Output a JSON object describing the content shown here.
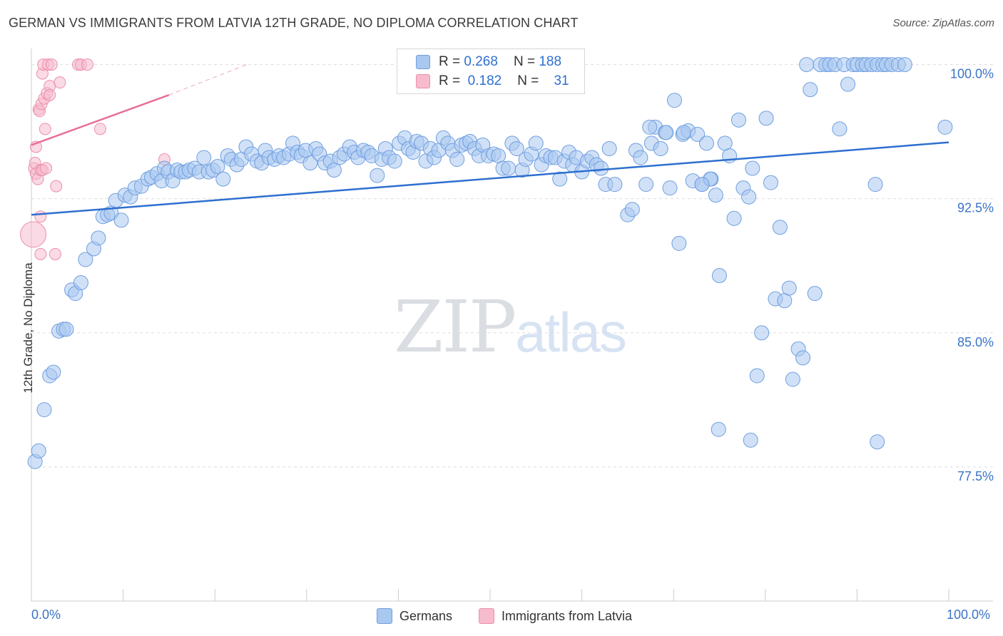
{
  "title": "GERMAN VS IMMIGRANTS FROM LATVIA 12TH GRADE, NO DIPLOMA CORRELATION CHART",
  "source": "Source: ZipAtlas.com",
  "watermark": {
    "zip": "ZIP",
    "atlas": "atlas"
  },
  "legend": {
    "german": {
      "r_label": "R =",
      "r_value": "0.268",
      "n_label": "N =",
      "n_value": "188",
      "color": "#a9c8f0",
      "edge": "#6f9ee0"
    },
    "latvia": {
      "r_label": "R =",
      "r_value": "0.182",
      "n_label": "N =",
      "n_value": "31",
      "color": "#f6bccd",
      "edge": "#ec8fab"
    }
  },
  "bottom_legend": {
    "german": "Germans",
    "latvia": "Immigrants from Latvia"
  },
  "chart_data": {
    "type": "scatter",
    "title": "GERMAN VS IMMIGRANTS FROM LATVIA 12TH GRADE, NO DIPLOMA CORRELATION CHART",
    "xlabel": "",
    "ylabel": "12th Grade, No Diploma",
    "xlim": [
      0,
      100
    ],
    "ylim": [
      70,
      100.9
    ],
    "x_tick_labels": [
      "0.0%",
      "100.0%"
    ],
    "y_ticks": [
      77.5,
      85.0,
      92.5,
      100.0
    ],
    "y_tick_labels": [
      "77.5%",
      "85.0%",
      "92.5%",
      "100.0%"
    ],
    "grid": true,
    "legend_position": "top-center",
    "series": [
      {
        "name": "Germans",
        "color": "#a9c8f0",
        "edge": "#6f9ee0",
        "line_color": "#2e6fd0",
        "trend": [
          [
            0,
            91.6
          ],
          [
            100,
            95.65
          ]
        ],
        "points": [
          [
            0.4,
            77.8
          ],
          [
            0.8,
            78.4
          ],
          [
            1.4,
            80.7
          ],
          [
            2.0,
            82.6
          ],
          [
            2.4,
            82.8
          ],
          [
            3.0,
            85.1
          ],
          [
            3.5,
            85.2
          ],
          [
            3.8,
            85.2
          ],
          [
            4.4,
            87.4
          ],
          [
            4.8,
            87.2
          ],
          [
            5.4,
            87.8
          ],
          [
            5.9,
            89.1
          ],
          [
            6.8,
            89.7
          ],
          [
            7.3,
            90.3
          ],
          [
            7.8,
            91.5
          ],
          [
            8.3,
            91.6
          ],
          [
            8.7,
            91.7
          ],
          [
            9.8,
            91.3
          ],
          [
            9.2,
            92.4
          ],
          [
            10.2,
            92.7
          ],
          [
            10.8,
            92.6
          ],
          [
            11.3,
            93.1
          ],
          [
            12.0,
            93.2
          ],
          [
            12.7,
            93.6
          ],
          [
            13.1,
            93.7
          ],
          [
            13.7,
            93.9
          ],
          [
            14.2,
            93.5
          ],
          [
            14.5,
            94.2
          ],
          [
            14.9,
            94.0
          ],
          [
            15.4,
            93.5
          ],
          [
            15.9,
            94.1
          ],
          [
            16.3,
            94.0
          ],
          [
            16.8,
            94.0
          ],
          [
            17.2,
            94.1
          ],
          [
            17.8,
            94.2
          ],
          [
            18.3,
            94.0
          ],
          [
            18.8,
            94.8
          ],
          [
            19.3,
            94.0
          ],
          [
            19.8,
            94.1
          ],
          [
            20.3,
            94.3
          ],
          [
            20.9,
            93.6
          ],
          [
            21.4,
            94.9
          ],
          [
            21.8,
            94.7
          ],
          [
            22.4,
            94.4
          ],
          [
            22.9,
            94.7
          ],
          [
            23.4,
            95.4
          ],
          [
            24.0,
            95.0
          ],
          [
            24.6,
            94.6
          ],
          [
            25.1,
            94.5
          ],
          [
            25.5,
            95.2
          ],
          [
            25.9,
            94.8
          ],
          [
            26.5,
            94.7
          ],
          [
            27.0,
            94.9
          ],
          [
            27.5,
            94.8
          ],
          [
            28.1,
            95.0
          ],
          [
            28.5,
            95.6
          ],
          [
            29.0,
            95.1
          ],
          [
            29.4,
            94.9
          ],
          [
            29.9,
            95.2
          ],
          [
            30.4,
            94.5
          ],
          [
            31.0,
            95.3
          ],
          [
            31.4,
            95.0
          ],
          [
            32.0,
            94.5
          ],
          [
            32.6,
            94.6
          ],
          [
            33.0,
            94.1
          ],
          [
            33.6,
            94.8
          ],
          [
            34.1,
            95.0
          ],
          [
            34.7,
            95.4
          ],
          [
            35.2,
            95.1
          ],
          [
            35.6,
            94.8
          ],
          [
            36.2,
            95.2
          ],
          [
            36.7,
            95.1
          ],
          [
            37.1,
            94.9
          ],
          [
            37.7,
            93.8
          ],
          [
            38.2,
            94.7
          ],
          [
            38.6,
            95.3
          ],
          [
            39.0,
            94.8
          ],
          [
            39.6,
            94.6
          ],
          [
            40.1,
            95.6
          ],
          [
            40.7,
            95.9
          ],
          [
            41.1,
            95.3
          ],
          [
            41.6,
            95.1
          ],
          [
            42.0,
            95.7
          ],
          [
            42.5,
            95.6
          ],
          [
            43.0,
            94.6
          ],
          [
            43.5,
            95.3
          ],
          [
            43.9,
            94.8
          ],
          [
            44.4,
            95.2
          ],
          [
            44.9,
            95.9
          ],
          [
            45.4,
            95.6
          ],
          [
            45.9,
            95.2
          ],
          [
            46.4,
            94.7
          ],
          [
            46.9,
            95.5
          ],
          [
            47.4,
            95.6
          ],
          [
            47.8,
            95.7
          ],
          [
            48.3,
            95.3
          ],
          [
            48.8,
            94.9
          ],
          [
            49.2,
            95.5
          ],
          [
            49.8,
            94.9
          ],
          [
            50.4,
            95.0
          ],
          [
            50.9,
            94.9
          ],
          [
            51.4,
            94.2
          ],
          [
            52.0,
            94.2
          ],
          [
            52.4,
            95.6
          ],
          [
            52.9,
            95.3
          ],
          [
            53.5,
            94.1
          ],
          [
            53.9,
            94.7
          ],
          [
            54.5,
            95.0
          ],
          [
            55.0,
            95.6
          ],
          [
            55.6,
            94.4
          ],
          [
            56.1,
            94.9
          ],
          [
            56.6,
            94.8
          ],
          [
            57.1,
            94.8
          ],
          [
            57.6,
            93.6
          ],
          [
            58.1,
            94.6
          ],
          [
            58.6,
            95.1
          ],
          [
            59.0,
            94.4
          ],
          [
            59.4,
            94.8
          ],
          [
            60.0,
            94.0
          ],
          [
            60.6,
            94.6
          ],
          [
            61.1,
            94.8
          ],
          [
            61.6,
            94.4
          ],
          [
            62.1,
            94.2
          ],
          [
            62.6,
            93.3
          ],
          [
            63.0,
            95.3
          ],
          [
            63.6,
            93.3
          ],
          [
            65.0,
            91.6
          ],
          [
            65.5,
            91.9
          ],
          [
            65.9,
            95.2
          ],
          [
            66.4,
            94.8
          ],
          [
            67.0,
            93.3
          ],
          [
            67.6,
            95.6
          ],
          [
            68.0,
            96.5
          ],
          [
            68.6,
            95.3
          ],
          [
            69.1,
            96.2
          ],
          [
            69.6,
            93.1
          ],
          [
            70.1,
            98.0
          ],
          [
            70.6,
            90.0
          ],
          [
            71.0,
            96.1
          ],
          [
            71.6,
            96.3
          ],
          [
            72.1,
            93.5
          ],
          [
            72.6,
            96.1
          ],
          [
            73.1,
            93.3
          ],
          [
            73.6,
            95.6
          ],
          [
            74.1,
            93.6
          ],
          [
            74.6,
            92.7
          ],
          [
            75.0,
            88.2
          ],
          [
            75.6,
            95.6
          ],
          [
            76.1,
            94.9
          ],
          [
            76.6,
            91.4
          ],
          [
            77.1,
            96.9
          ],
          [
            77.6,
            93.1
          ],
          [
            78.2,
            92.6
          ],
          [
            78.6,
            94.2
          ],
          [
            79.6,
            85.0
          ],
          [
            79.1,
            82.6
          ],
          [
            80.1,
            97.0
          ],
          [
            80.6,
            93.4
          ],
          [
            81.1,
            86.9
          ],
          [
            81.6,
            90.9
          ],
          [
            82.1,
            86.8
          ],
          [
            82.6,
            87.5
          ],
          [
            83.0,
            82.4
          ],
          [
            83.6,
            84.1
          ],
          [
            84.1,
            83.6
          ],
          [
            84.5,
            100.0
          ],
          [
            84.9,
            98.6
          ],
          [
            85.4,
            87.2
          ],
          [
            86.0,
            100.0
          ],
          [
            86.6,
            100.0
          ],
          [
            87.0,
            100.0
          ],
          [
            87.6,
            100.0
          ],
          [
            88.1,
            96.4
          ],
          [
            88.6,
            100.0
          ],
          [
            89.0,
            98.9
          ],
          [
            89.6,
            100.0
          ],
          [
            90.0,
            100.0
          ],
          [
            90.6,
            100.0
          ],
          [
            91.0,
            100.0
          ],
          [
            91.6,
            100.0
          ],
          [
            92.2,
            100.0
          ],
          [
            92.8,
            100.0
          ],
          [
            93.2,
            100.0
          ],
          [
            93.8,
            100.0
          ],
          [
            94.5,
            100.0
          ],
          [
            95.2,
            100.0
          ],
          [
            92.0,
            93.3
          ],
          [
            99.6,
            96.5
          ],
          [
            78.4,
            79.0
          ],
          [
            92.2,
            78.9
          ],
          [
            74.9,
            79.6
          ],
          [
            69.2,
            96.2
          ],
          [
            71.1,
            96.2
          ],
          [
            74.0,
            93.6
          ],
          [
            73.1,
            93.3
          ],
          [
            67.4,
            96.5
          ]
        ]
      },
      {
        "name": "Immigrants from Latvia",
        "color": "#f6bccd",
        "edge": "#ec8fab",
        "line_color": "#e86f96",
        "trend": [
          [
            0,
            95.5
          ],
          [
            15,
            98.3
          ]
        ],
        "trend_dashed": [
          [
            15,
            98.3
          ],
          [
            23.5,
            100.0
          ]
        ],
        "points": [
          [
            0.2,
            90.5
          ],
          [
            0.3,
            94.2
          ],
          [
            0.4,
            94.5
          ],
          [
            0.5,
            93.9
          ],
          [
            0.5,
            95.4
          ],
          [
            0.7,
            93.6
          ],
          [
            0.8,
            97.5
          ],
          [
            0.9,
            97.4
          ],
          [
            1.0,
            94.1
          ],
          [
            1.0,
            89.4
          ],
          [
            1.0,
            91.5
          ],
          [
            1.1,
            97.8
          ],
          [
            1.2,
            99.5
          ],
          [
            1.2,
            94.1
          ],
          [
            1.3,
            100.0
          ],
          [
            1.4,
            98.1
          ],
          [
            1.5,
            96.4
          ],
          [
            1.6,
            94.2
          ],
          [
            1.7,
            98.4
          ],
          [
            1.8,
            100.0
          ],
          [
            2.0,
            98.8
          ],
          [
            2.0,
            98.3
          ],
          [
            2.2,
            100.0
          ],
          [
            2.6,
            89.4
          ],
          [
            2.7,
            93.2
          ],
          [
            3.1,
            99.0
          ],
          [
            5.1,
            100.0
          ],
          [
            5.4,
            100.0
          ],
          [
            6.1,
            100.0
          ],
          [
            7.5,
            96.4
          ],
          [
            14.5,
            94.7
          ]
        ]
      }
    ]
  }
}
